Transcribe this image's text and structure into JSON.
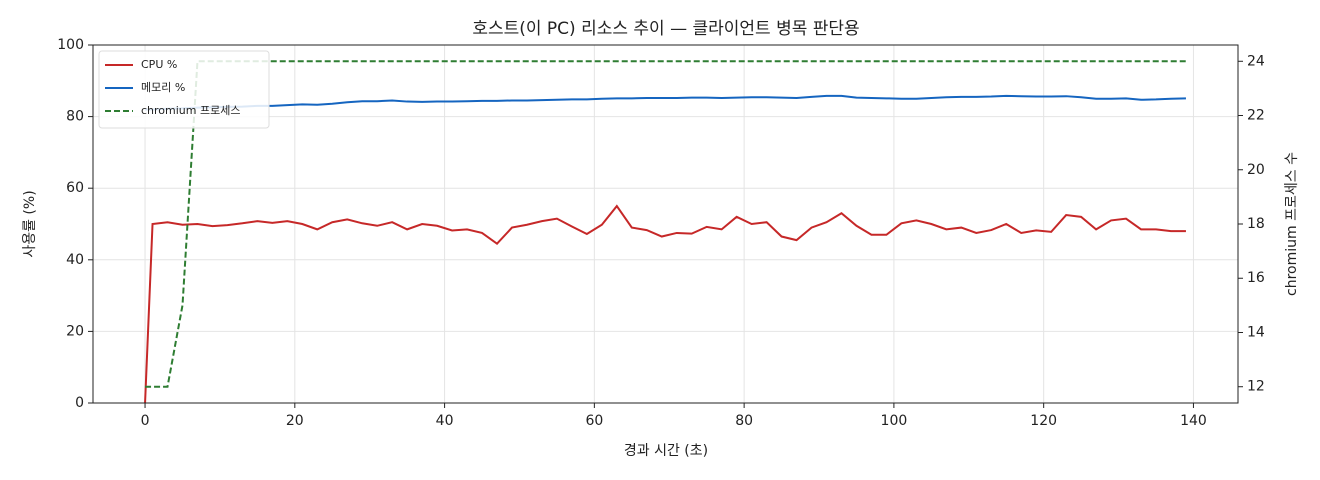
{
  "chart_data": {
    "type": "line",
    "title": "호스트(이 PC) 리소스 추이 — 클라이언트 병목 판단용",
    "xlabel": "경과 시간 (초)",
    "ylabel": "사용률 (%)",
    "y2label": "chromium 프로세스 수",
    "x": [
      0,
      1,
      3,
      5,
      7,
      9,
      11,
      13,
      15,
      17,
      19,
      21,
      23,
      25,
      27,
      29,
      31,
      33,
      35,
      37,
      39,
      41,
      43,
      45,
      47,
      49,
      51,
      53,
      55,
      57,
      59,
      61,
      63,
      65,
      67,
      69,
      71,
      73,
      75,
      77,
      79,
      81,
      83,
      85,
      87,
      89,
      91,
      93,
      95,
      97,
      99,
      101,
      103,
      105,
      107,
      109,
      111,
      113,
      115,
      117,
      119,
      121,
      123,
      125,
      127,
      129,
      131,
      133,
      135,
      137,
      139
    ],
    "series": [
      {
        "name": "CPU %",
        "color": "#c62828",
        "dash": "solid",
        "values": [
          0,
          50,
          50.5,
          49.8,
          50,
          49.4,
          49.7,
          50.2,
          50.8,
          50.3,
          50.8,
          50,
          48.5,
          50.5,
          51.3,
          50.2,
          49.5,
          50.5,
          48.5,
          50,
          49.5,
          48.2,
          48.5,
          47.5,
          44.5,
          49,
          49.8,
          50.8,
          51.5,
          49.3,
          47.2,
          49.8,
          55,
          49,
          48.3,
          46.5,
          47.5,
          47.3,
          49.2,
          48.5,
          52,
          50,
          50.5,
          46.5,
          45.5,
          49,
          50.5,
          53,
          49.5,
          47,
          47,
          50.2,
          51,
          50,
          48.5,
          49,
          47.5,
          48.3,
          50,
          47.5,
          48.2,
          47.8,
          52.5,
          52,
          48.5,
          51,
          51.5,
          48.5,
          48.5,
          48,
          48
        ]
      },
      {
        "name": "메모리 %",
        "color": "#1565c0",
        "dash": "solid",
        "values": [
          82,
          82,
          82.2,
          82.3,
          82.5,
          82.6,
          82.7,
          82.8,
          83,
          83,
          83.2,
          83.4,
          83.3,
          83.6,
          84,
          84.3,
          84.3,
          84.5,
          84.2,
          84.1,
          84.2,
          84.2,
          84.3,
          84.4,
          84.4,
          84.5,
          84.5,
          84.6,
          84.7,
          84.8,
          84.8,
          85,
          85.1,
          85.1,
          85.2,
          85.2,
          85.2,
          85.3,
          85.3,
          85.2,
          85.3,
          85.4,
          85.4,
          85.3,
          85.2,
          85.5,
          85.8,
          85.8,
          85.3,
          85.2,
          85.1,
          85,
          85,
          85.2,
          85.4,
          85.5,
          85.5,
          85.6,
          85.8,
          85.7,
          85.6,
          85.6,
          85.7,
          85.4,
          85,
          85,
          85.1,
          84.7,
          84.8,
          85,
          85.1
        ]
      },
      {
        "name": "chromium 프로세스",
        "color": "#2e7d32",
        "dash": "dashed",
        "axis": "y2",
        "values": [
          12,
          12,
          12,
          15,
          24,
          24,
          24,
          24,
          24,
          24,
          24,
          24,
          24,
          24,
          24,
          24,
          24,
          24,
          24,
          24,
          24,
          24,
          24,
          24,
          24,
          24,
          24,
          24,
          24,
          24,
          24,
          24,
          24,
          24,
          24,
          24,
          24,
          24,
          24,
          24,
          24,
          24,
          24,
          24,
          24,
          24,
          24,
          24,
          24,
          24,
          24,
          24,
          24,
          24,
          24,
          24,
          24,
          24,
          24,
          24,
          24,
          24,
          24,
          24,
          24,
          24,
          24,
          24,
          24,
          24,
          24
        ]
      }
    ],
    "xlim": [
      -6.95,
      145.95
    ],
    "xticks": [
      0,
      20,
      40,
      60,
      80,
      100,
      120,
      140
    ],
    "ylim": [
      0,
      100
    ],
    "yticks": [
      0,
      20,
      40,
      60,
      80,
      100
    ],
    "y2lim": [
      11.4,
      24.6
    ],
    "y2ticks": [
      12,
      14,
      16,
      18,
      20,
      22,
      24
    ],
    "grid": true,
    "legend": "upper-left"
  }
}
